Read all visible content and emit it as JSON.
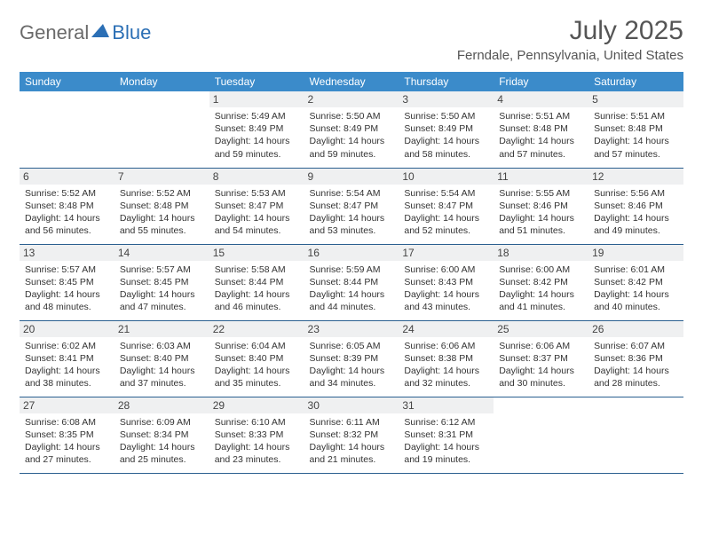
{
  "logo": {
    "general": "General",
    "blue": "Blue"
  },
  "title": "July 2025",
  "location": "Ferndale, Pennsylvania, United States",
  "colors": {
    "header_bg": "#3b8bca",
    "header_text": "#ffffff",
    "daynum_bg": "#eff0f1",
    "border": "#2a5f8f",
    "text": "#333333",
    "logo_gray": "#6a6a6a",
    "logo_blue": "#2b6fb5"
  },
  "day_headers": [
    "Sunday",
    "Monday",
    "Tuesday",
    "Wednesday",
    "Thursday",
    "Friday",
    "Saturday"
  ],
  "weeks": [
    [
      null,
      null,
      {
        "n": "1",
        "rise": "5:49 AM",
        "set": "8:49 PM",
        "dl": "14 hours and 59 minutes."
      },
      {
        "n": "2",
        "rise": "5:50 AM",
        "set": "8:49 PM",
        "dl": "14 hours and 59 minutes."
      },
      {
        "n": "3",
        "rise": "5:50 AM",
        "set": "8:49 PM",
        "dl": "14 hours and 58 minutes."
      },
      {
        "n": "4",
        "rise": "5:51 AM",
        "set": "8:48 PM",
        "dl": "14 hours and 57 minutes."
      },
      {
        "n": "5",
        "rise": "5:51 AM",
        "set": "8:48 PM",
        "dl": "14 hours and 57 minutes."
      }
    ],
    [
      {
        "n": "6",
        "rise": "5:52 AM",
        "set": "8:48 PM",
        "dl": "14 hours and 56 minutes."
      },
      {
        "n": "7",
        "rise": "5:52 AM",
        "set": "8:48 PM",
        "dl": "14 hours and 55 minutes."
      },
      {
        "n": "8",
        "rise": "5:53 AM",
        "set": "8:47 PM",
        "dl": "14 hours and 54 minutes."
      },
      {
        "n": "9",
        "rise": "5:54 AM",
        "set": "8:47 PM",
        "dl": "14 hours and 53 minutes."
      },
      {
        "n": "10",
        "rise": "5:54 AM",
        "set": "8:47 PM",
        "dl": "14 hours and 52 minutes."
      },
      {
        "n": "11",
        "rise": "5:55 AM",
        "set": "8:46 PM",
        "dl": "14 hours and 51 minutes."
      },
      {
        "n": "12",
        "rise": "5:56 AM",
        "set": "8:46 PM",
        "dl": "14 hours and 49 minutes."
      }
    ],
    [
      {
        "n": "13",
        "rise": "5:57 AM",
        "set": "8:45 PM",
        "dl": "14 hours and 48 minutes."
      },
      {
        "n": "14",
        "rise": "5:57 AM",
        "set": "8:45 PM",
        "dl": "14 hours and 47 minutes."
      },
      {
        "n": "15",
        "rise": "5:58 AM",
        "set": "8:44 PM",
        "dl": "14 hours and 46 minutes."
      },
      {
        "n": "16",
        "rise": "5:59 AM",
        "set": "8:44 PM",
        "dl": "14 hours and 44 minutes."
      },
      {
        "n": "17",
        "rise": "6:00 AM",
        "set": "8:43 PM",
        "dl": "14 hours and 43 minutes."
      },
      {
        "n": "18",
        "rise": "6:00 AM",
        "set": "8:42 PM",
        "dl": "14 hours and 41 minutes."
      },
      {
        "n": "19",
        "rise": "6:01 AM",
        "set": "8:42 PM",
        "dl": "14 hours and 40 minutes."
      }
    ],
    [
      {
        "n": "20",
        "rise": "6:02 AM",
        "set": "8:41 PM",
        "dl": "14 hours and 38 minutes."
      },
      {
        "n": "21",
        "rise": "6:03 AM",
        "set": "8:40 PM",
        "dl": "14 hours and 37 minutes."
      },
      {
        "n": "22",
        "rise": "6:04 AM",
        "set": "8:40 PM",
        "dl": "14 hours and 35 minutes."
      },
      {
        "n": "23",
        "rise": "6:05 AM",
        "set": "8:39 PM",
        "dl": "14 hours and 34 minutes."
      },
      {
        "n": "24",
        "rise": "6:06 AM",
        "set": "8:38 PM",
        "dl": "14 hours and 32 minutes."
      },
      {
        "n": "25",
        "rise": "6:06 AM",
        "set": "8:37 PM",
        "dl": "14 hours and 30 minutes."
      },
      {
        "n": "26",
        "rise": "6:07 AM",
        "set": "8:36 PM",
        "dl": "14 hours and 28 minutes."
      }
    ],
    [
      {
        "n": "27",
        "rise": "6:08 AM",
        "set": "8:35 PM",
        "dl": "14 hours and 27 minutes."
      },
      {
        "n": "28",
        "rise": "6:09 AM",
        "set": "8:34 PM",
        "dl": "14 hours and 25 minutes."
      },
      {
        "n": "29",
        "rise": "6:10 AM",
        "set": "8:33 PM",
        "dl": "14 hours and 23 minutes."
      },
      {
        "n": "30",
        "rise": "6:11 AM",
        "set": "8:32 PM",
        "dl": "14 hours and 21 minutes."
      },
      {
        "n": "31",
        "rise": "6:12 AM",
        "set": "8:31 PM",
        "dl": "14 hours and 19 minutes."
      },
      null,
      null
    ]
  ],
  "labels": {
    "sunrise": "Sunrise: ",
    "sunset": "Sunset: ",
    "daylight": "Daylight: "
  }
}
